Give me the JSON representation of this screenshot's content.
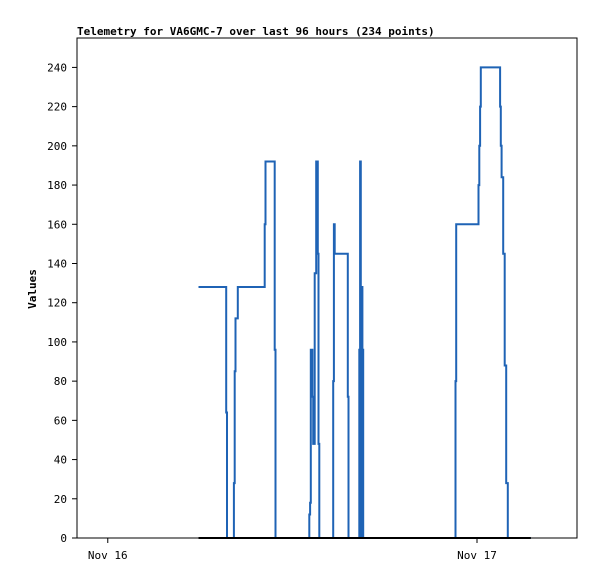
{
  "chart_data": {
    "type": "line",
    "title": "Telemetry for VA6GMC-7 over last 96 hours (234 points)",
    "xlabel": "",
    "ylabel": "Values",
    "ylim": [
      0,
      255
    ],
    "xlim": [
      -2,
      30.5
    ],
    "x_unit": "hours since Nov 16 00:00",
    "yticks": [
      0,
      20,
      40,
      60,
      80,
      100,
      120,
      140,
      160,
      180,
      200,
      220,
      240
    ],
    "xticks": [
      {
        "value": 0,
        "label": "Nov 16"
      },
      {
        "value": 24,
        "label": "Nov 17"
      }
    ],
    "grid": false,
    "legend": "none",
    "colors": {
      "series": "#1f63b5",
      "baseline": "#000000",
      "frame": "#000000"
    },
    "series": [
      {
        "name": "",
        "x": [
          5.9,
          7.7,
          7.7,
          7.75,
          7.75,
          7.8,
          7.8,
          8.2,
          8.2,
          8.25,
          8.25,
          8.3,
          8.3,
          8.35,
          8.35,
          8.45,
          8.45,
          8.55,
          8.55,
          10.2,
          10.2,
          10.25,
          10.25,
          10.3,
          10.3,
          10.85,
          10.85,
          10.9,
          10.9,
          13.1,
          13.1,
          13.15,
          13.15,
          13.2,
          13.2,
          13.3,
          13.3,
          13.35,
          13.35,
          13.45,
          13.45,
          13.55,
          13.55,
          13.65,
          13.65,
          13.7,
          13.7,
          13.75,
          13.75,
          13.8,
          13.8,
          13.9,
          13.9,
          14.0,
          14.0,
          14.65,
          14.65,
          14.7,
          14.7,
          14.75,
          14.75,
          14.8,
          14.8,
          15.6,
          15.6,
          15.65,
          15.65,
          15.7,
          15.7,
          16.35,
          16.35,
          16.4,
          16.4,
          16.45,
          16.45,
          16.5,
          16.5,
          16.55,
          16.55,
          16.6,
          16.6,
          16.65,
          16.65,
          16.7,
          16.7,
          16.75,
          22.6,
          22.6,
          22.65,
          22.65,
          24.1,
          24.1,
          24.15,
          24.15,
          24.2,
          24.2,
          24.25,
          24.25,
          25.5,
          25.5,
          25.55,
          25.55,
          25.6,
          25.6,
          25.7,
          25.7,
          25.8,
          25.8,
          25.9,
          25.9,
          26.0,
          26.0,
          26.05,
          26.05,
          26.1,
          27.5
        ],
        "y": [
          128,
          128,
          64,
          64,
          0,
          0,
          0,
          0,
          28,
          28,
          85,
          85,
          112,
          112,
          112,
          112,
          128,
          128,
          128,
          128,
          160,
          160,
          192,
          192,
          192,
          192,
          96,
          96,
          0,
          0,
          12,
          12,
          18,
          18,
          96,
          96,
          72,
          72,
          48,
          48,
          135,
          135,
          192,
          192,
          145,
          145,
          48,
          48,
          0,
          0,
          0,
          0,
          0,
          0,
          0,
          0,
          80,
          80,
          160,
          160,
          145,
          145,
          145,
          145,
          72,
          72,
          0,
          0,
          0,
          0,
          96,
          96,
          192,
          192,
          0,
          0,
          128,
          128,
          96,
          96,
          0,
          0,
          0,
          0,
          0,
          0,
          0,
          80,
          80,
          160,
          160,
          180,
          180,
          200,
          200,
          220,
          220,
          240,
          240,
          220,
          220,
          200,
          200,
          184,
          184,
          145,
          145,
          88,
          88,
          28,
          28,
          0,
          0,
          0,
          0,
          0
        ]
      }
    ]
  }
}
